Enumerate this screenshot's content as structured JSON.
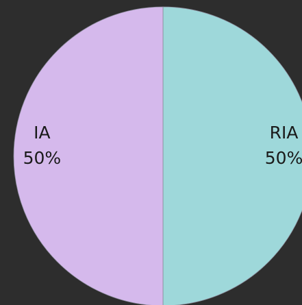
{
  "chart_data": {
    "type": "pie",
    "categories": [
      "RIA",
      "IA"
    ],
    "values": [
      50,
      50
    ],
    "value_labels": [
      "50%",
      "50%"
    ],
    "colors": [
      "#9ed8da",
      "#d5b9ec"
    ]
  }
}
